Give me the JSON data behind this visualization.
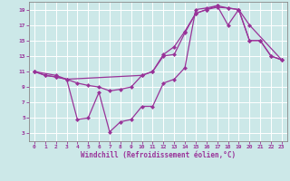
{
  "bg_color": "#cce8e8",
  "grid_color": "#ffffff",
  "line_color": "#993399",
  "xlabel": "Windchill (Refroidissement éolien,°C)",
  "xlim": [
    -0.5,
    23.5
  ],
  "ylim": [
    2.0,
    20.0
  ],
  "xticks": [
    0,
    1,
    2,
    3,
    4,
    5,
    6,
    7,
    8,
    9,
    10,
    11,
    12,
    13,
    14,
    15,
    16,
    17,
    18,
    19,
    20,
    21,
    22,
    23
  ],
  "yticks": [
    3,
    5,
    7,
    9,
    11,
    13,
    15,
    17,
    19
  ],
  "line1_x": [
    0,
    2,
    3,
    10,
    11,
    12,
    13,
    14,
    15,
    16,
    17,
    18,
    19,
    20,
    23
  ],
  "line1_y": [
    11,
    10.5,
    10,
    10.5,
    11,
    13.2,
    14.2,
    16.2,
    18.5,
    19.0,
    19.5,
    19.2,
    19.0,
    17.0,
    12.5
  ],
  "line2_x": [
    0,
    1,
    2,
    3,
    4,
    5,
    6,
    7,
    8,
    9,
    10,
    11,
    12,
    13,
    14,
    15,
    16,
    17,
    18,
    19,
    20,
    21,
    22,
    23
  ],
  "line2_y": [
    11,
    10.5,
    10.3,
    10.0,
    4.8,
    5.0,
    8.3,
    3.2,
    4.5,
    4.8,
    6.5,
    6.5,
    9.5,
    10.0,
    11.5,
    19.0,
    19.2,
    19.5,
    17.0,
    19.0,
    15.0,
    15.0,
    13.0,
    12.5
  ],
  "line3_x": [
    0,
    1,
    2,
    3,
    4,
    5,
    6,
    7,
    8,
    9,
    10,
    11,
    12,
    13,
    14,
    15,
    16,
    17,
    18,
    19,
    20,
    21,
    22,
    23
  ],
  "line3_y": [
    11,
    10.5,
    10.3,
    10.0,
    9.5,
    9.2,
    9.0,
    8.5,
    8.7,
    9.0,
    10.5,
    11.0,
    13.0,
    13.2,
    16.0,
    18.5,
    19.0,
    19.3,
    19.2,
    19.0,
    15.0,
    15.0,
    13.0,
    12.5
  ]
}
